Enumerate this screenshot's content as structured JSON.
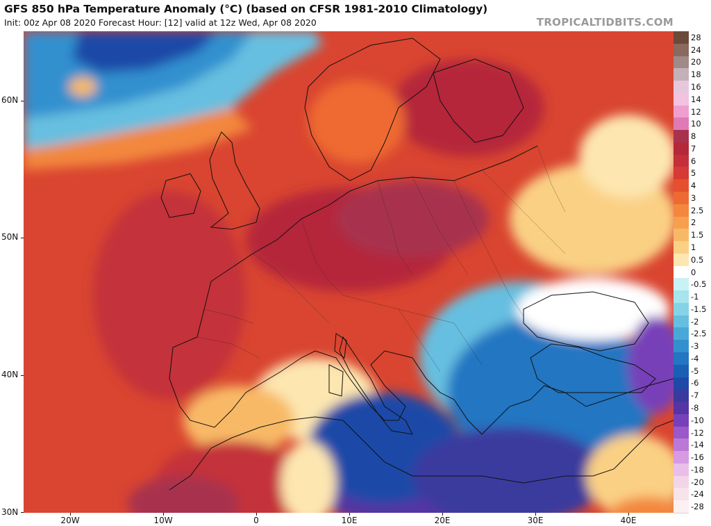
{
  "header": {
    "title": "GFS 850 hPa Temperature Anomaly (°C) (based on CFSR 1981-2010 Climatology)",
    "subtitle": "Init: 00z Apr 08 2020   Forecast Hour: [12]   valid at 12z Wed, Apr 08 2020",
    "credit": "TROPICALTIDBITS.COM"
  },
  "axes": {
    "lat_labels": [
      "60N",
      "50N",
      "40N",
      "30N"
    ],
    "lon_labels": [
      "20W",
      "10W",
      "0",
      "10E",
      "20E",
      "30E",
      "40E"
    ]
  },
  "colorbar": {
    "levels": [
      {
        "label": "28",
        "color": "#6b4a3a"
      },
      {
        "label": "24",
        "color": "#8a6a5e"
      },
      {
        "label": "20",
        "color": "#a08a88"
      },
      {
        "label": "18",
        "color": "#c4b0b8"
      },
      {
        "label": "16",
        "color": "#e6c8dc"
      },
      {
        "label": "14",
        "color": "#f2c2e0"
      },
      {
        "label": "12",
        "color": "#ee9fd0"
      },
      {
        "label": "10",
        "color": "#e07ab6"
      },
      {
        "label": "8",
        "color": "#a8324e"
      },
      {
        "label": "7",
        "color": "#b5283a"
      },
      {
        "label": "6",
        "color": "#c4303a"
      },
      {
        "label": "5",
        "color": "#d63a34"
      },
      {
        "label": "4",
        "color": "#e5502e"
      },
      {
        "label": "3",
        "color": "#ee6a33"
      },
      {
        "label": "2.5",
        "color": "#f3873e"
      },
      {
        "label": "2",
        "color": "#f6a04e"
      },
      {
        "label": "1.5",
        "color": "#f8b966"
      },
      {
        "label": "1",
        "color": "#fad084"
      },
      {
        "label": "0.5",
        "color": "#fde6b0"
      },
      {
        "label": "0",
        "color": "#ffffff"
      },
      {
        "label": "-0.5",
        "color": "#c9f2f5"
      },
      {
        "label": "-1",
        "color": "#a6e4ee"
      },
      {
        "label": "-1.5",
        "color": "#86d3e8"
      },
      {
        "label": "-2",
        "color": "#66bfe0"
      },
      {
        "label": "-2.5",
        "color": "#4aa8d8"
      },
      {
        "label": "-3",
        "color": "#3390cf"
      },
      {
        "label": "-4",
        "color": "#2276c2"
      },
      {
        "label": "-5",
        "color": "#1a5fb4"
      },
      {
        "label": "-6",
        "color": "#1f49a8"
      },
      {
        "label": "-7",
        "color": "#3a3a9e"
      },
      {
        "label": "-8",
        "color": "#5534a3"
      },
      {
        "label": "-10",
        "color": "#7840b8"
      },
      {
        "label": "-12",
        "color": "#9a58c8"
      },
      {
        "label": "-14",
        "color": "#bb78d6"
      },
      {
        "label": "-16",
        "color": "#d69be2"
      },
      {
        "label": "-18",
        "color": "#e9bfe9"
      },
      {
        "label": "-20",
        "color": "#f3d5e8"
      },
      {
        "label": "-24",
        "color": "#f7e3ea"
      },
      {
        "label": "-28",
        "color": "#fbf0f1"
      }
    ]
  }
}
